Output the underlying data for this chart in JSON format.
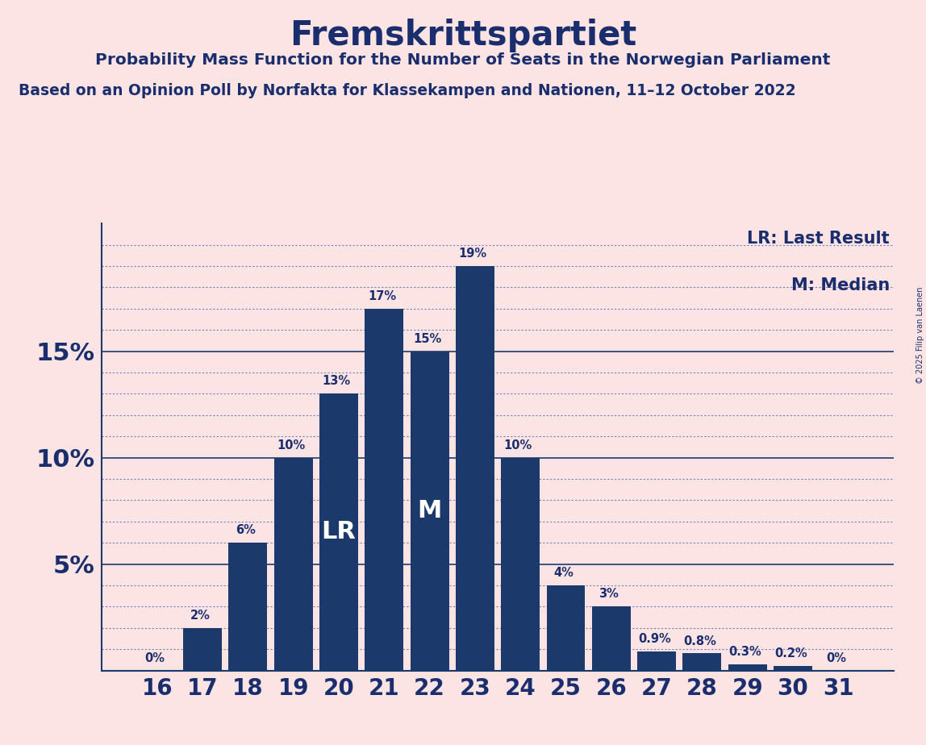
{
  "title": "Fremskrittspartiet",
  "subtitle": "Probability Mass Function for the Number of Seats in the Norwegian Parliament",
  "subtitle2": "Based on an Opinion Poll by Norfakta for Klassekampen and Nationen, 11–12 October 2022",
  "copyright": "© 2025 Filip van Laenen",
  "seats": [
    16,
    17,
    18,
    19,
    20,
    21,
    22,
    23,
    24,
    25,
    26,
    27,
    28,
    29,
    30,
    31
  ],
  "probabilities": [
    0.0,
    2.0,
    6.0,
    10.0,
    13.0,
    17.0,
    15.0,
    19.0,
    10.0,
    4.0,
    3.0,
    0.9,
    0.8,
    0.3,
    0.2,
    0.0
  ],
  "bar_color": "#1b3a6b",
  "bg_color": "#fce4e4",
  "text_color": "#1a2e6e",
  "lr_seat": 20,
  "median_seat": 22,
  "lr_label": "LR",
  "median_label": "M",
  "legend_lr": "LR: Last Result",
  "legend_m": "M: Median",
  "ylim": [
    0,
    21
  ],
  "axis_line_color": "#1a3a6e",
  "grid_color": "#7080b8"
}
